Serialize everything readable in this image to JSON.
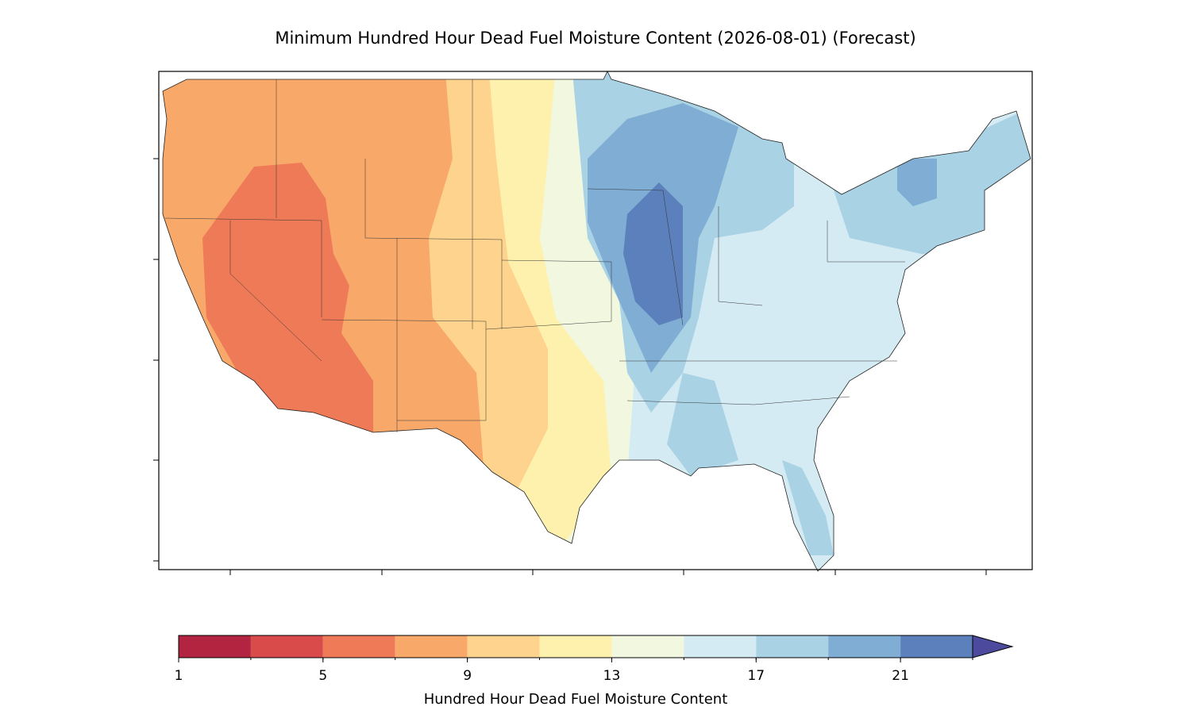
{
  "title": "Minimum Hundred Hour Dead Fuel Moisture Content (2026-08-01) (Forecast)",
  "colorbar": {
    "label": "Hundred Hour Dead Fuel Moisture Content",
    "bounds": [
      1,
      3,
      5,
      7,
      9,
      11,
      13,
      15,
      17,
      19,
      21,
      23
    ],
    "colors": [
      "#b2243f",
      "#d84b4a",
      "#ef7a57",
      "#f8a96a",
      "#fdd38d",
      "#fef0ad",
      "#f2f8e0",
      "#d5ebf3",
      "#a9d2e5",
      "#7fadd3",
      "#5b80bb"
    ],
    "extend_color": "#4c4a9c",
    "ticks": [
      1,
      5,
      9,
      13,
      17,
      21
    ]
  }
}
